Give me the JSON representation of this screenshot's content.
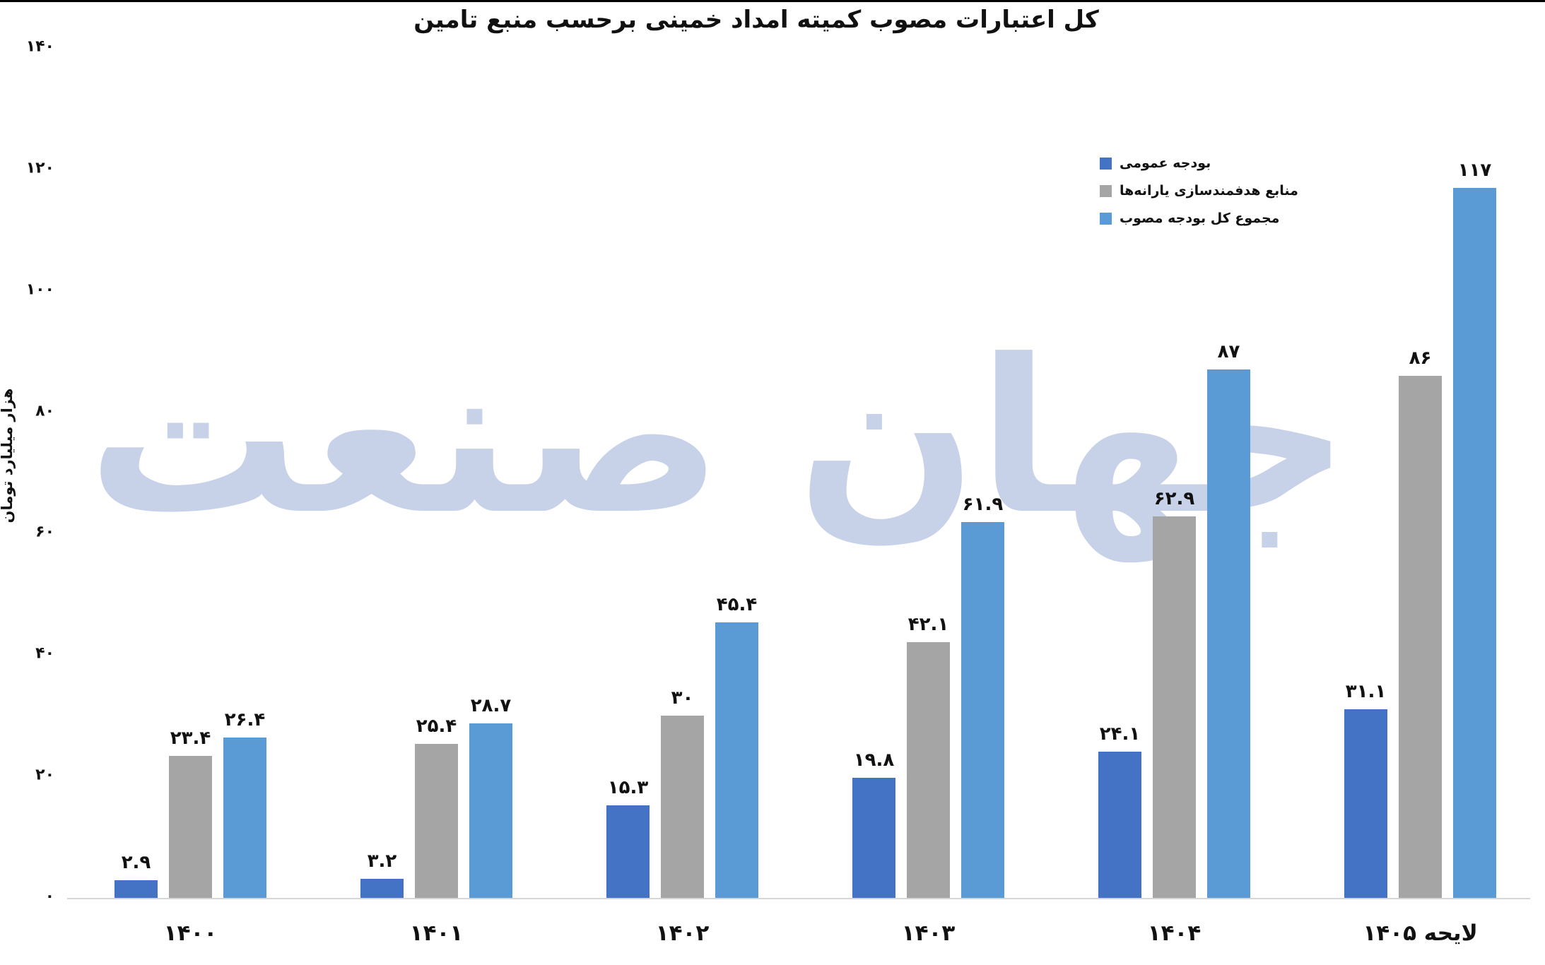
{
  "title": "کل اعتبارات مصوب کمیته امداد خمینی برحسب منبع تامین",
  "watermark_text": "جهان صنعت",
  "y_axis": {
    "label": "هزار میلیارد تومان",
    "ticks": [
      {
        "value": 0,
        "label": "۰"
      },
      {
        "value": 20,
        "label": "۲۰"
      },
      {
        "value": 40,
        "label": "۴۰"
      },
      {
        "value": 60,
        "label": "۶۰"
      },
      {
        "value": 80,
        "label": "۸۰"
      },
      {
        "value": 100,
        "label": "۱۰۰"
      },
      {
        "value": 120,
        "label": "۱۲۰"
      },
      {
        "value": 140,
        "label": "۱۴۰"
      }
    ]
  },
  "legend": {
    "position": "top-right",
    "items": [
      {
        "label": "بودجه عمومی",
        "color": "#4472C4"
      },
      {
        "label": "منابع هدفمندسازی یارانه‌ها",
        "color": "#A5A5A5"
      },
      {
        "label": "مجموع کل بودجه مصوب",
        "color": "#5B9BD5"
      }
    ]
  },
  "chart_data": {
    "type": "bar",
    "title": "کل اعتبارات مصوب کمیته امداد خمینی برحسب منبع تامین",
    "xlabel": "",
    "ylabel": "هزار میلیارد تومان",
    "ylim": [
      0,
      140
    ],
    "grid": false,
    "legend_position": "top-right",
    "categories": [
      "۱۴۰۰",
      "۱۴۰۱",
      "۱۴۰۲",
      "۱۴۰۳",
      "۱۴۰۴",
      "لایحه ۱۴۰۵"
    ],
    "series": [
      {
        "name": "بودجه عمومی",
        "color": "#4472C4",
        "values": [
          2.9,
          3.2,
          15.3,
          19.8,
          24.1,
          31.1
        ],
        "labels": [
          "۲.۹",
          "۳.۲",
          "۱۵.۳",
          "۱۹.۸",
          "۲۴.۱",
          "۳۱.۱"
        ]
      },
      {
        "name": "منابع هدفمندسازی یارانه‌ها",
        "color": "#A5A5A5",
        "values": [
          23.4,
          25.4,
          30,
          42.1,
          62.9,
          86
        ],
        "labels": [
          "۲۳.۴",
          "۲۵.۴",
          "۳۰",
          "۴۲.۱",
          "۶۲.۹",
          "۸۶"
        ]
      },
      {
        "name": "مجموع کل بودجه مصوب",
        "color": "#5B9BD5",
        "values": [
          26.4,
          28.7,
          45.4,
          61.9,
          87,
          117
        ],
        "labels": [
          "۲۶.۴",
          "۲۸.۷",
          "۴۵.۴",
          "۶۱.۹",
          "۸۷",
          "۱۱۷"
        ]
      }
    ]
  }
}
